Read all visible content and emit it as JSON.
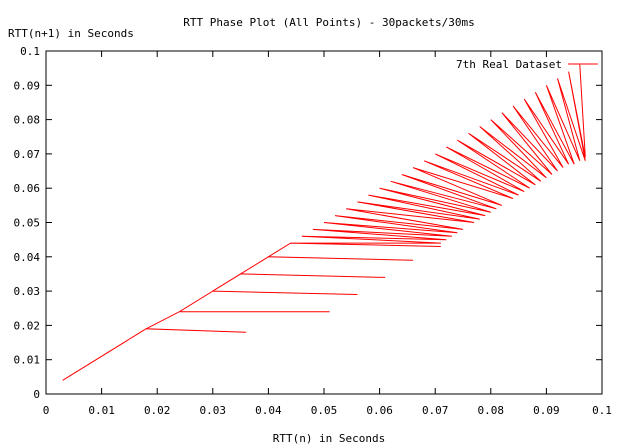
{
  "chart_data": {
    "type": "line",
    "title": "RTT Phase Plot (All Points) - 30packets/30ms",
    "xlabel": "RTT(n) in Seconds",
    "ylabel": "RTT(n+1) in Seconds",
    "xlim": [
      0,
      0.1
    ],
    "ylim": [
      0,
      0.1
    ],
    "x_ticks": [
      "0",
      "0.01",
      "0.02",
      "0.03",
      "0.04",
      "0.05",
      "0.06",
      "0.07",
      "0.08",
      "0.09",
      "0.1"
    ],
    "y_ticks": [
      "0",
      "0.01",
      "0.02",
      "0.03",
      "0.04",
      "0.05",
      "0.06",
      "0.07",
      "0.08",
      "0.09",
      "0.1"
    ],
    "grid": false,
    "legend_position": "top-right",
    "series": [
      {
        "name": "7th Real Dataset",
        "color": "#ff0000",
        "x": [
          0.003,
          0.018,
          0.036,
          0.018,
          0.024,
          0.051,
          0.024,
          0.03,
          0.056,
          0.03,
          0.035,
          0.061,
          0.035,
          0.04,
          0.066,
          0.04,
          0.044,
          0.071,
          0.044,
          0.071,
          0.044,
          0.071,
          0.046,
          0.072,
          0.048,
          0.073,
          0.05,
          0.074,
          0.052,
          0.075,
          0.054,
          0.077,
          0.056,
          0.078,
          0.058,
          0.079,
          0.06,
          0.08,
          0.062,
          0.081,
          0.064,
          0.082,
          0.066,
          0.084,
          0.068,
          0.085,
          0.07,
          0.086,
          0.072,
          0.087,
          0.074,
          0.088,
          0.076,
          0.089,
          0.078,
          0.09,
          0.08,
          0.091,
          0.082,
          0.092,
          0.084,
          0.093,
          0.086,
          0.094,
          0.088,
          0.095,
          0.09,
          0.096,
          0.092,
          0.097,
          0.094,
          0.097,
          0.096
        ],
        "y": [
          0.004,
          0.019,
          0.018,
          0.019,
          0.024,
          0.024,
          0.024,
          0.03,
          0.029,
          0.03,
          0.035,
          0.034,
          0.035,
          0.04,
          0.039,
          0.04,
          0.044,
          0.044,
          0.044,
          0.043,
          0.044,
          0.044,
          0.046,
          0.045,
          0.048,
          0.046,
          0.05,
          0.047,
          0.052,
          0.048,
          0.054,
          0.05,
          0.056,
          0.051,
          0.058,
          0.052,
          0.06,
          0.053,
          0.062,
          0.054,
          0.064,
          0.055,
          0.066,
          0.057,
          0.068,
          0.058,
          0.07,
          0.059,
          0.072,
          0.06,
          0.074,
          0.061,
          0.076,
          0.062,
          0.078,
          0.063,
          0.08,
          0.064,
          0.082,
          0.065,
          0.084,
          0.066,
          0.086,
          0.067,
          0.088,
          0.067,
          0.09,
          0.068,
          0.092,
          0.068,
          0.094,
          0.069,
          0.096
        ]
      }
    ]
  }
}
